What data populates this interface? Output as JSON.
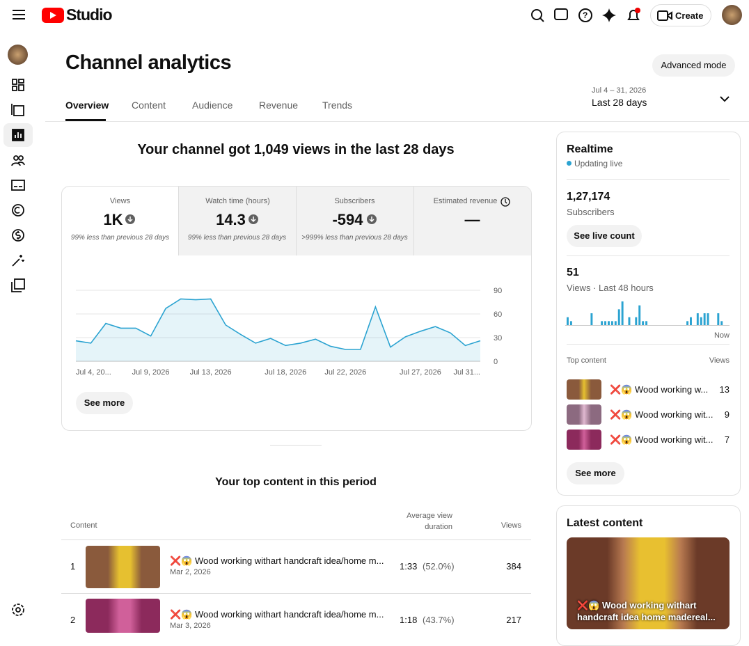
{
  "header": {
    "logo_text": "Studio",
    "create": "Create"
  },
  "page": {
    "title": "Channel analytics",
    "advanced": "Advanced mode",
    "tabs": [
      "Overview",
      "Content",
      "Audience",
      "Revenue",
      "Trends"
    ],
    "date_range": "Jul 4 – 31, 2026",
    "period": "Last 28 days",
    "headline": "Your channel got 1,049 views in the last 28 days",
    "see_more": "See more"
  },
  "metrics": [
    {
      "label": "Views",
      "value": "1K",
      "note": "99% less than previous 28 days"
    },
    {
      "label": "Watch time (hours)",
      "value": "14.3",
      "note": "99% less than previous 28 days"
    },
    {
      "label": "Subscribers",
      "value": "-594",
      "note": ">999% less than previous 28 days"
    },
    {
      "label": "Estimated revenue",
      "value": "—"
    }
  ],
  "chart_data": {
    "type": "line",
    "color": "#2ba3d1",
    "grid": true,
    "x": [
      "Jul 4, 20...",
      null,
      null,
      null,
      null,
      "Jul 9, 2026",
      null,
      null,
      null,
      "Jul 13, 2026",
      null,
      null,
      null,
      null,
      "Jul 18, 2026",
      null,
      null,
      null,
      "Jul 22, 2026",
      null,
      null,
      null,
      null,
      "Jul 27, 2026",
      null,
      null,
      null,
      "Jul 31..."
    ],
    "values": [
      26,
      23,
      48,
      42,
      42,
      32,
      67,
      79,
      78,
      79,
      46,
      34,
      23,
      29,
      20,
      23,
      28,
      19,
      15,
      15,
      69,
      18,
      31,
      38,
      44,
      36,
      20,
      26
    ],
    "ylim": [
      0,
      90
    ],
    "yticks": [
      0,
      30,
      60,
      90
    ]
  },
  "top_content": {
    "title": "Your top content in this period",
    "columns": [
      "Content",
      "Average view duration",
      "Views"
    ],
    "rows": [
      {
        "rank": 1,
        "title": "❌😱 Wood working withart handcraft idea/home m...",
        "date": "Mar 2, 2026",
        "duration": "1:33",
        "percent": "(52.0%)",
        "views": 384
      },
      {
        "rank": 2,
        "title": "❌😱 Wood working withart handcraft idea/home m...",
        "date": "Mar 3, 2026",
        "duration": "1:18",
        "percent": "(43.7%)",
        "views": 217
      }
    ]
  },
  "realtime": {
    "title": "Realtime",
    "status": "Updating live",
    "subscribers": "1,27,174",
    "subscribers_label": "Subscribers",
    "live_count": "See live count",
    "views": 51,
    "views_label": "Views · Last 48 hours",
    "hourly_views": [
      2,
      1,
      0,
      0,
      0,
      0,
      0,
      3,
      0,
      0,
      1,
      1,
      1,
      1,
      1,
      4,
      6,
      0,
      2,
      0,
      2,
      5,
      1,
      1,
      0,
      0,
      0,
      0,
      0,
      0,
      0,
      0,
      0,
      0,
      0,
      1,
      2,
      0,
      3,
      2,
      3,
      3,
      0,
      0,
      3,
      1,
      0,
      0
    ],
    "now": "Now",
    "top_content_label": "Top content",
    "views_column": "Views",
    "items": [
      {
        "title": "❌😱 Wood working w...",
        "views": 13
      },
      {
        "title": "❌😱 Wood working wit...",
        "views": 9
      },
      {
        "title": "❌😱 Wood working wit...",
        "views": 7
      }
    ],
    "see_more": "See more"
  },
  "latest_content": {
    "title": "Latest content",
    "video_title": "❌😱 Wood working withart handcraft idea home madereal..."
  }
}
